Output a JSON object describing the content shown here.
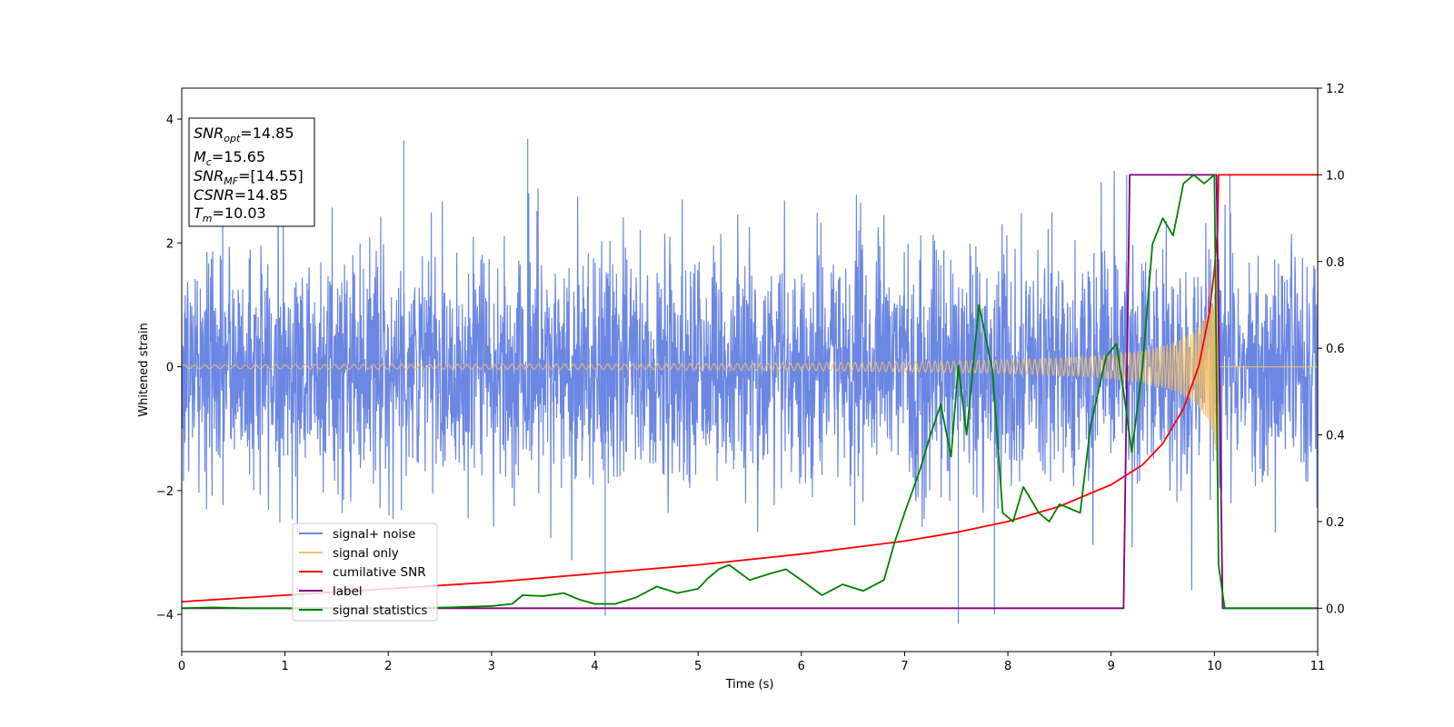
{
  "chart_data": {
    "type": "line",
    "xlabel": "Time (s)",
    "ylabel": "Whitened strain",
    "xlim": [
      0,
      11
    ],
    "ylim": [
      -4.6,
      4.5
    ],
    "y2lim": [
      -0.1,
      1.2
    ],
    "xticks": [
      "0",
      "1",
      "2",
      "3",
      "4",
      "5",
      "6",
      "7",
      "8",
      "9",
      "10",
      "11"
    ],
    "yticks": [
      "−4",
      "−2",
      "0",
      "2",
      "4"
    ],
    "y2ticks": [
      "0.0",
      "0.2",
      "0.4",
      "0.6",
      "0.8",
      "1.0",
      "1.2"
    ],
    "grid": false,
    "legend_position": "lower-left",
    "info_box": {
      "snr_opt": {
        "base": "SNR",
        "sub": "opt",
        "value": "=14.85"
      },
      "mc": {
        "base": "M",
        "sub": "c",
        "value": "=15.65"
      },
      "snr_mf": {
        "base": "SNR",
        "sub": "MF",
        "value": "=[14.55]"
      },
      "csnr": {
        "base": "CSNR",
        "sub": "",
        "value": "=14.85"
      },
      "tm": {
        "base": "T",
        "sub": "m",
        "value": "=10.03"
      }
    },
    "series": [
      {
        "name": "signal+ noise",
        "axis": "left",
        "color": "#6b87e3",
        "noise_sigma": 0.95,
        "approx_extrema": [
          [
            2.15,
            3.65
          ],
          [
            3.35,
            3.68
          ],
          [
            7.52,
            -4.15
          ],
          [
            7.87,
            -4.0
          ],
          [
            4.1,
            -4.02
          ],
          [
            9.15,
            3.1
          ],
          [
            10.15,
            3.1
          ]
        ]
      },
      {
        "name": "signal only",
        "axis": "left",
        "color": "#f5c064",
        "envelope": [
          [
            0,
            0.03
          ],
          [
            2,
            0.04
          ],
          [
            4,
            0.045
          ],
          [
            6,
            0.06
          ],
          [
            7,
            0.08
          ],
          [
            8,
            0.11
          ],
          [
            8.8,
            0.16
          ],
          [
            9.3,
            0.25
          ],
          [
            9.6,
            0.38
          ],
          [
            9.8,
            0.55
          ],
          [
            9.95,
            0.9
          ],
          [
            10.0,
            1.1
          ],
          [
            10.03,
            2.1
          ],
          [
            10.05,
            0.0
          ],
          [
            11,
            0.0
          ]
        ]
      },
      {
        "name": "cumilative SNR",
        "axis": "right",
        "color": "#ff0000",
        "points": [
          [
            0,
            0.015
          ],
          [
            1,
            0.03
          ],
          [
            2,
            0.045
          ],
          [
            3,
            0.06
          ],
          [
            4,
            0.08
          ],
          [
            5,
            0.1
          ],
          [
            6,
            0.125
          ],
          [
            6.5,
            0.14
          ],
          [
            7,
            0.155
          ],
          [
            7.5,
            0.175
          ],
          [
            8,
            0.2
          ],
          [
            8.5,
            0.235
          ],
          [
            9,
            0.285
          ],
          [
            9.3,
            0.33
          ],
          [
            9.5,
            0.38
          ],
          [
            9.7,
            0.46
          ],
          [
            9.85,
            0.56
          ],
          [
            9.95,
            0.68
          ],
          [
            10.0,
            0.78
          ],
          [
            10.03,
            0.87
          ],
          [
            10.04,
            1.0
          ],
          [
            11,
            1.0
          ]
        ]
      },
      {
        "name": "label",
        "axis": "right",
        "color": "#800080",
        "points": [
          [
            0,
            0.0
          ],
          [
            9.12,
            0.0
          ],
          [
            9.18,
            1.0
          ],
          [
            10.02,
            1.0
          ],
          [
            10.08,
            0.0
          ],
          [
            11,
            0.0
          ]
        ]
      },
      {
        "name": "signal statistics",
        "axis": "right",
        "color": "#008000",
        "points": [
          [
            0,
            0.0
          ],
          [
            0.3,
            0.002
          ],
          [
            0.6,
            0.0
          ],
          [
            1,
            0.0
          ],
          [
            2,
            0.0
          ],
          [
            2.6,
            0.002
          ],
          [
            3.0,
            0.005
          ],
          [
            3.2,
            0.01
          ],
          [
            3.3,
            0.03
          ],
          [
            3.5,
            0.028
          ],
          [
            3.7,
            0.035
          ],
          [
            3.85,
            0.02
          ],
          [
            4.0,
            0.01
          ],
          [
            4.2,
            0.01
          ],
          [
            4.4,
            0.025
          ],
          [
            4.6,
            0.05
          ],
          [
            4.8,
            0.035
          ],
          [
            5.0,
            0.045
          ],
          [
            5.1,
            0.07
          ],
          [
            5.2,
            0.09
          ],
          [
            5.3,
            0.1
          ],
          [
            5.5,
            0.065
          ],
          [
            5.7,
            0.08
          ],
          [
            5.85,
            0.09
          ],
          [
            6.0,
            0.065
          ],
          [
            6.2,
            0.03
          ],
          [
            6.4,
            0.055
          ],
          [
            6.6,
            0.04
          ],
          [
            6.8,
            0.065
          ],
          [
            6.9,
            0.15
          ],
          [
            7.0,
            0.22
          ],
          [
            7.15,
            0.32
          ],
          [
            7.25,
            0.4
          ],
          [
            7.35,
            0.47
          ],
          [
            7.45,
            0.35
          ],
          [
            7.52,
            0.56
          ],
          [
            7.6,
            0.4
          ],
          [
            7.72,
            0.7
          ],
          [
            7.85,
            0.55
          ],
          [
            7.95,
            0.22
          ],
          [
            8.05,
            0.2
          ],
          [
            8.15,
            0.28
          ],
          [
            8.3,
            0.22
          ],
          [
            8.4,
            0.2
          ],
          [
            8.5,
            0.24
          ],
          [
            8.7,
            0.22
          ],
          [
            8.8,
            0.42
          ],
          [
            8.95,
            0.58
          ],
          [
            9.05,
            0.61
          ],
          [
            9.12,
            0.5
          ],
          [
            9.2,
            0.36
          ],
          [
            9.3,
            0.55
          ],
          [
            9.4,
            0.84
          ],
          [
            9.5,
            0.9
          ],
          [
            9.6,
            0.86
          ],
          [
            9.7,
            0.98
          ],
          [
            9.8,
            1.0
          ],
          [
            9.9,
            0.98
          ],
          [
            10.0,
            1.0
          ],
          [
            10.04,
            0.1
          ],
          [
            10.1,
            0.0
          ],
          [
            11,
            0.0
          ]
        ]
      }
    ]
  }
}
